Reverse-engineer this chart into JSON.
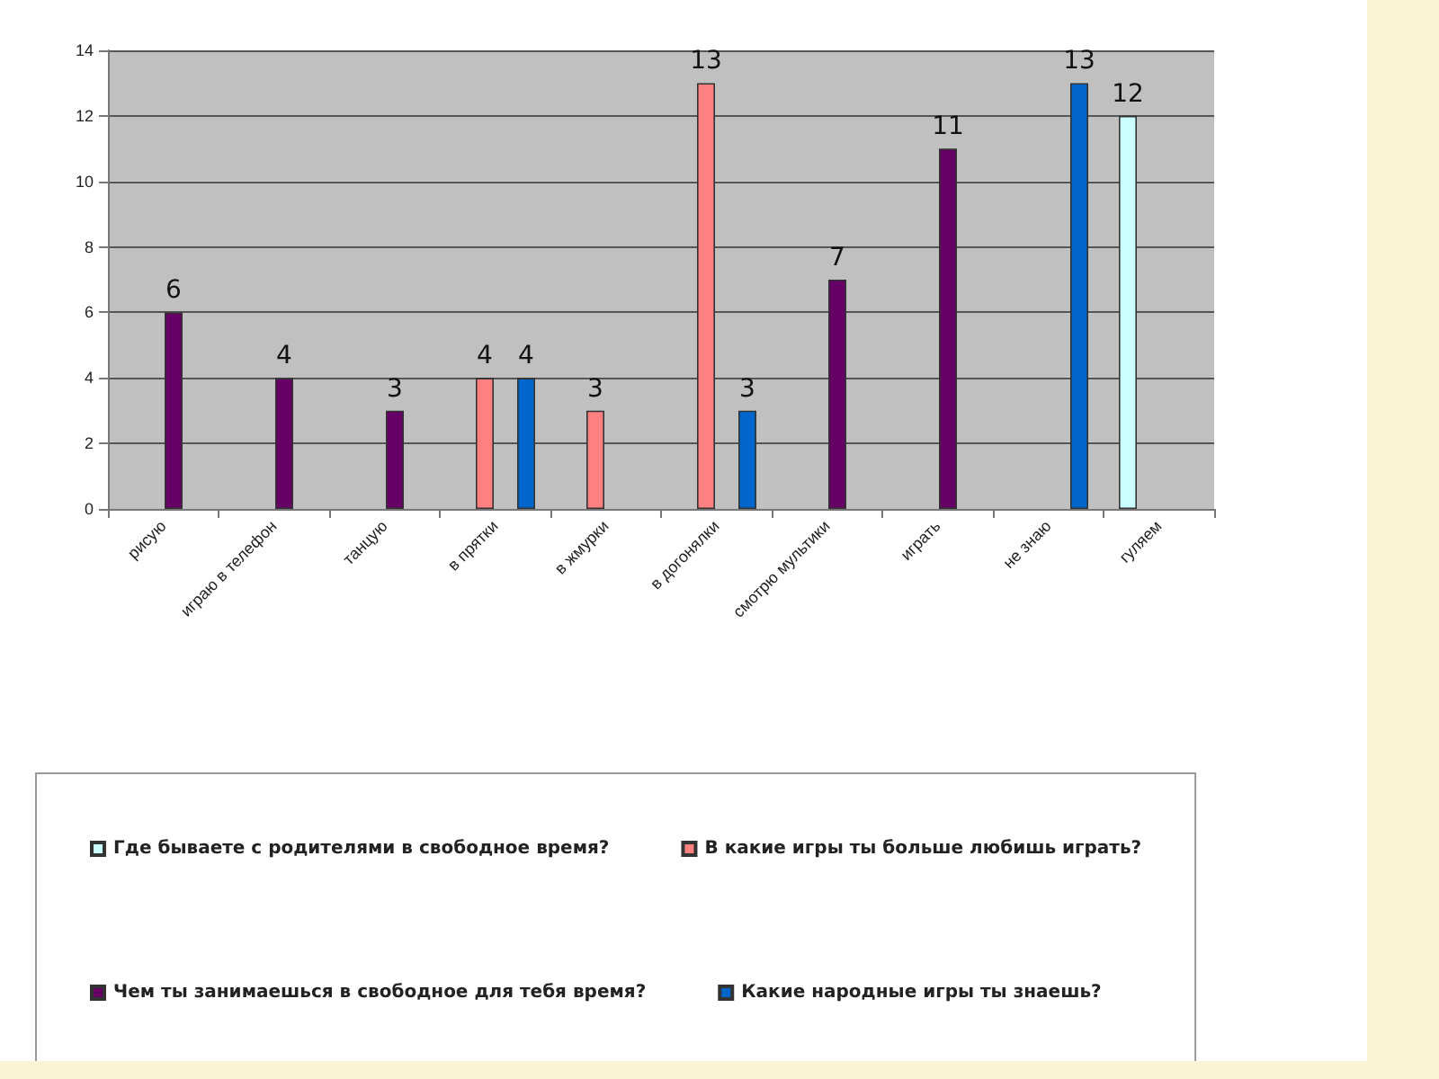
{
  "chart_data": {
    "type": "bar",
    "categories": [
      "рисую",
      "играю в телефон",
      "танцую",
      "в прятки",
      "в жмурки",
      "в догонялки",
      "смотрю мультики",
      "играть",
      "не знаю",
      "гуляем"
    ],
    "series": [
      {
        "name": "Где бываете с родителями в свободное время?",
        "color": "#ccffff",
        "values": [
          null,
          null,
          null,
          null,
          null,
          null,
          null,
          null,
          null,
          12
        ],
        "value_labels": [
          null,
          null,
          null,
          null,
          null,
          null,
          null,
          null,
          null,
          "12"
        ]
      },
      {
        "name": "В какие игры ты больше любишь играть?",
        "color": "#ff8080",
        "values": [
          null,
          null,
          null,
          4,
          3,
          13,
          null,
          null,
          null,
          null
        ],
        "value_labels": [
          null,
          null,
          null,
          "4",
          "3",
          "13",
          null,
          null,
          null,
          null
        ]
      },
      {
        "name": "Чем ты занимаешься в свободное для тебя время?",
        "color": "#660066",
        "values": [
          6,
          4,
          3,
          null,
          null,
          null,
          7,
          11,
          null,
          null
        ],
        "value_labels": [
          "6",
          "4",
          "3",
          null,
          null,
          null,
          "7",
          "11",
          null,
          null
        ]
      },
      {
        "name": "Какие народные игры ты знаешь?",
        "color": "#0066cc",
        "values": [
          null,
          null,
          null,
          4,
          null,
          3,
          null,
          null,
          13,
          null
        ],
        "value_labels": [
          null,
          null,
          null,
          "4",
          null,
          "3",
          null,
          null,
          "13",
          null
        ]
      }
    ],
    "ylim": [
      0,
      14
    ],
    "yticks": [
      0,
      2,
      4,
      6,
      8,
      10,
      12,
      14
    ],
    "grid": "y",
    "legend": "bottom"
  }
}
